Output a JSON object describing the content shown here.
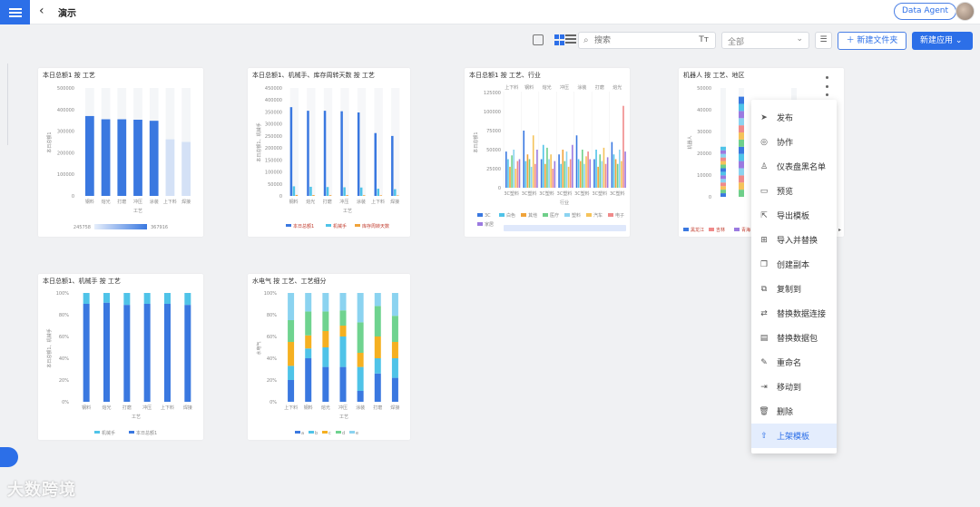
{
  "header": {
    "title": "演示",
    "agent_button": "Data Agent"
  },
  "toolbar": {
    "search_placeholder": "搜索",
    "filter_value": "全部",
    "new_folder_label": "＋ 新建文件夹",
    "new_app_label": "新建应用"
  },
  "cards": [
    {
      "title": "本日总额1 按 工艺"
    },
    {
      "title": "本日总额1、机械手、库存周转天数 按 工艺"
    },
    {
      "title": "本日总额1 按 工艺、行业"
    },
    {
      "title": "机器人 按 工艺、地区"
    },
    {
      "title": "本日总额1、机械手 按 工艺"
    },
    {
      "title": "水电气 按 工艺、工艺细分"
    }
  ],
  "context_menu": [
    {
      "label": "发布",
      "icon": "send-icon"
    },
    {
      "label": "协作",
      "icon": "collaborate-icon"
    },
    {
      "label": "仪表盘黑名单",
      "icon": "user-block-icon"
    },
    {
      "label": "预览",
      "icon": "preview-icon"
    },
    {
      "label": "导出模板",
      "icon": "export-icon"
    },
    {
      "label": "导入并替换",
      "icon": "import-icon"
    },
    {
      "label": "创建副本",
      "icon": "copy-icon"
    },
    {
      "label": "复制到",
      "icon": "copy-to-icon"
    },
    {
      "label": "替换数据连接",
      "icon": "replace-connection-icon"
    },
    {
      "label": "替换数据包",
      "icon": "replace-package-icon"
    },
    {
      "label": "重命名",
      "icon": "rename-icon"
    },
    {
      "label": "移动到",
      "icon": "move-icon"
    },
    {
      "label": "删除",
      "icon": "delete-icon"
    },
    {
      "label": "上架模板",
      "icon": "upload-template-icon",
      "active": true
    }
  ],
  "watermark": "大数跨境",
  "chart_data": [
    {
      "type": "bar",
      "title": "本日总额1 按 工艺",
      "ylabel": "本日总额1",
      "xlabel": "工艺",
      "categories": [
        "钢料",
        "熔光",
        "打磨",
        "冲压",
        "涂装",
        "上下料",
        "焊接"
      ],
      "values": [
        370000,
        355000,
        355000,
        353000,
        348000,
        262000,
        250000
      ],
      "ylim": [
        0,
        500000
      ],
      "yticks": [
        "500000",
        "400000",
        "300000",
        "200000",
        "100000",
        "0"
      ],
      "legend_range": [
        "245758",
        "367916"
      ]
    },
    {
      "type": "bar",
      "title": "本日总额1、机械手、库存周转天数 按 工艺",
      "ylabel": "本日总额1、机械手",
      "xlabel": "工艺",
      "categories": [
        "钢料",
        "熔光",
        "打磨",
        "冲压",
        "涂装",
        "上下料",
        "焊接"
      ],
      "series": [
        {
          "name": "本日总额1",
          "values": [
            370000,
            355000,
            355000,
            353000,
            348000,
            262000,
            250000
          ]
        },
        {
          "name": "机械手",
          "values": [
            40000,
            38000,
            37000,
            36000,
            35000,
            30000,
            28000
          ]
        },
        {
          "name": "库存周转天数",
          "values": [
            4000,
            3500,
            3000,
            3200,
            2800,
            2500,
            2000
          ]
        }
      ],
      "ylim": [
        0,
        450000
      ],
      "yticks": [
        "450000",
        "400000",
        "350000",
        "300000",
        "250000",
        "200000",
        "150000",
        "100000",
        "50000",
        "0"
      ]
    },
    {
      "type": "bar",
      "title": "本日总额1 按 工艺、行业",
      "ylabel": "本日总额1",
      "xlabel": "行业",
      "top_categories": [
        "上下料",
        "钢料",
        "熔光",
        "冲压",
        "涂装",
        "打磨",
        "熔光"
      ],
      "categories": [
        "3C塑料",
        "3C塑料",
        "3C塑料",
        "3C塑料",
        "3C塑料",
        "3C塑料",
        "3C塑料"
      ],
      "ylim": [
        0,
        125000
      ],
      "yticks": [
        "125000",
        "100000",
        "75000",
        "50000",
        "25000",
        "0"
      ],
      "legend": [
        "3C",
        "白色",
        "其他",
        "医疗",
        "塑料",
        "汽车",
        "电子",
        "家居"
      ]
    },
    {
      "type": "bar",
      "title": "机器人 按 工艺、地区",
      "ylabel": "机器人",
      "ylim": [
        0,
        50000
      ],
      "yticks": [
        "50000",
        "40000",
        "30000",
        "20000",
        "10000",
        "0"
      ],
      "legend": [
        "黑龙江",
        "吉林",
        "青海"
      ]
    },
    {
      "type": "bar",
      "title": "本日总额1、机械手 按 工艺",
      "ylabel": "本日总额1、机械手",
      "xlabel": "工艺",
      "categories": [
        "钢料",
        "熔光",
        "打磨",
        "冲压",
        "上下料",
        "焊接"
      ],
      "series": [
        {
          "name": "机械手",
          "values": [
            10,
            9,
            11,
            10,
            10,
            11
          ]
        },
        {
          "name": "本日总额1",
          "values": [
            90,
            91,
            89,
            90,
            90,
            89
          ]
        }
      ],
      "ylim": [
        0,
        100
      ],
      "yticks": [
        "100%",
        "80%",
        "60%",
        "40%",
        "20%",
        "0%"
      ]
    },
    {
      "type": "bar",
      "title": "水电气 按 工艺、工艺细分",
      "ylabel": "水电气",
      "xlabel": "工艺",
      "categories": [
        "上下料",
        "钢料",
        "熔光",
        "冲压",
        "涂装",
        "打磨",
        "焊接"
      ],
      "series": [
        {
          "name": "a",
          "values": [
            20,
            40,
            32,
            32,
            10,
            26,
            22
          ]
        },
        {
          "name": "b",
          "values": [
            13,
            9,
            18,
            28,
            22,
            14,
            18
          ]
        },
        {
          "name": "c",
          "values": [
            22,
            12,
            15,
            10,
            13,
            20,
            15
          ]
        },
        {
          "name": "d",
          "values": [
            20,
            22,
            18,
            14,
            28,
            28,
            24
          ]
        },
        {
          "name": "e",
          "values": [
            25,
            17,
            17,
            16,
            27,
            12,
            21
          ]
        }
      ],
      "ylim": [
        0,
        100
      ],
      "yticks": [
        "100%",
        "80%",
        "60%",
        "40%",
        "20%",
        "0%"
      ],
      "legend": [
        "a",
        "b",
        "c",
        "d",
        "e"
      ]
    }
  ]
}
